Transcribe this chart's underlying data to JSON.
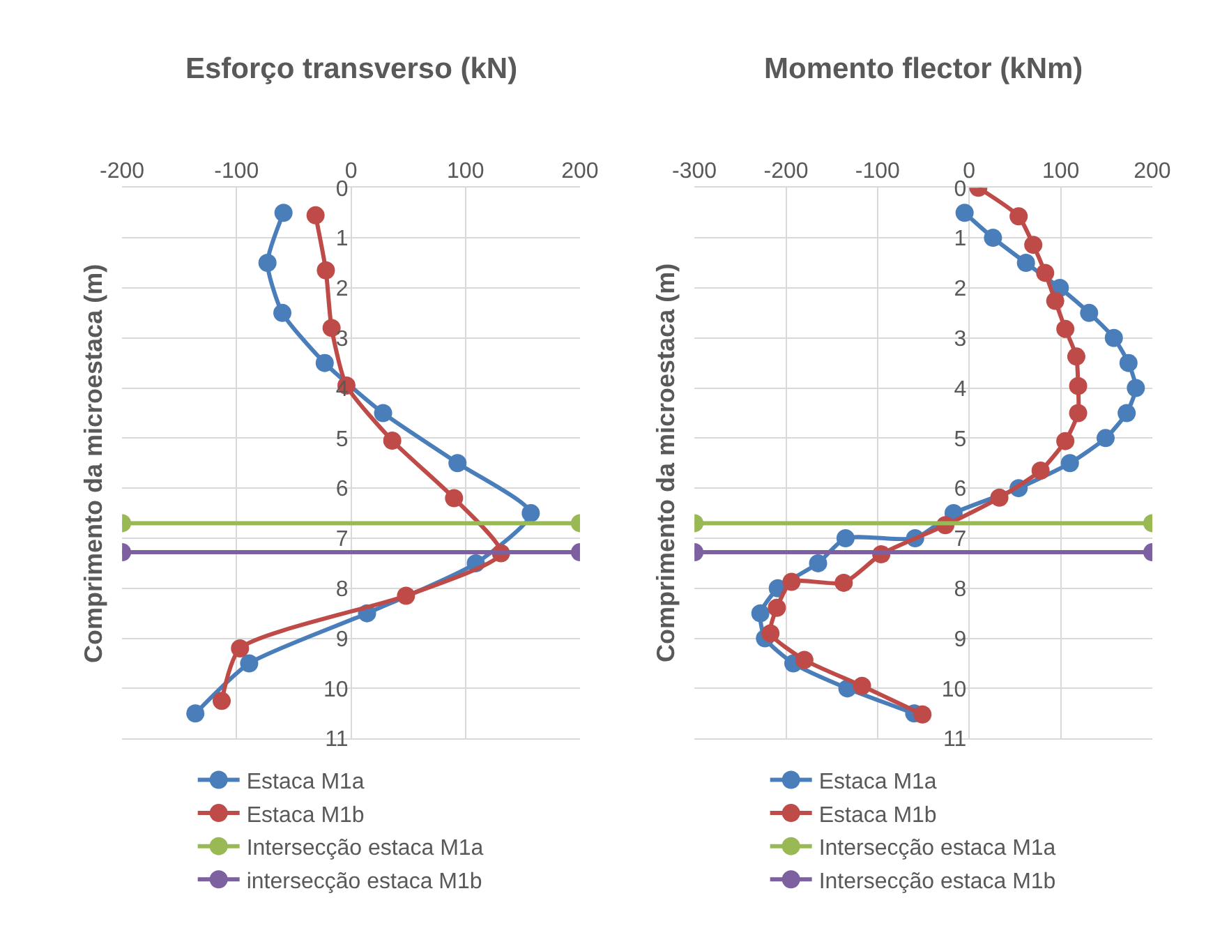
{
  "chart_data": [
    {
      "type": "line",
      "title": "Esforço transverso (kN)",
      "ylabel": "Comprimento da microestaca (m)",
      "xlim": [
        -200,
        200
      ],
      "xticks": [
        -200,
        -100,
        0,
        100,
        200
      ],
      "ylim": [
        11,
        0
      ],
      "yticks": [
        0,
        1,
        2,
        3,
        4,
        5,
        6,
        7,
        8,
        9,
        10,
        11
      ],
      "grid": true,
      "legend": "bottom",
      "marker": "circle",
      "line_style": "solid",
      "series": [
        {
          "name": "Estaca M1a",
          "color": "#4a7ebb",
          "x": [
            -59,
            -73,
            -60,
            -23,
            28,
            93,
            157,
            109,
            14,
            -89,
            -136
          ],
          "values": [
            0.5,
            1.5,
            2.5,
            3.5,
            4.5,
            5.5,
            6.5,
            7.5,
            8.5,
            9.5,
            10.5
          ]
        },
        {
          "name": "Estaca M1b",
          "color": "#be4b48",
          "x": [
            -31,
            -22,
            -17,
            -4,
            36,
            90,
            131,
            48,
            -97,
            -113
          ],
          "values": [
            0.55,
            1.65,
            2.8,
            3.95,
            5.05,
            6.2,
            7.3,
            8.15,
            9.2,
            10.25
          ]
        },
        {
          "name": "Intersecção estaca M1a",
          "color": "#98b954",
          "x": [
            -200,
            200
          ],
          "values": [
            6.7,
            6.7
          ]
        },
        {
          "name": "intersecção estaca M1b",
          "color": "#7d60a0",
          "x": [
            -200,
            200
          ],
          "values": [
            7.28,
            7.28
          ]
        }
      ]
    },
    {
      "type": "line",
      "title": "Momento flector (kNm)",
      "ylabel": "Comprimento da microestaca (m)",
      "xlim": [
        -300,
        200
      ],
      "xticks": [
        -300,
        -200,
        -100,
        0,
        100,
        200
      ],
      "ylim": [
        11,
        0
      ],
      "yticks": [
        0,
        1,
        2,
        3,
        4,
        5,
        6,
        7,
        8,
        9,
        10,
        11
      ],
      "grid": true,
      "legend": "bottom",
      "marker": "circle",
      "line_style": "solid",
      "series": [
        {
          "name": "Estaca M1a",
          "color": "#4a7ebb",
          "x": [
            -5,
            26,
            62,
            99,
            131,
            158,
            174,
            182,
            172,
            149,
            110,
            54,
            -17,
            -59,
            -135,
            -165,
            -209,
            -228,
            -223,
            -192,
            -133,
            -60
          ],
          "values": [
            0.5,
            1.0,
            1.5,
            2.0,
            2.5,
            3.0,
            3.5,
            4.0,
            4.5,
            5.0,
            5.5,
            6.0,
            6.5,
            7.0,
            7.0,
            7.5,
            8.0,
            8.5,
            9.0,
            9.5,
            10.0,
            10.5
          ]
        },
        {
          "name": "Estaca M1b",
          "color": "#be4b48",
          "x": [
            10,
            54,
            70,
            83,
            94,
            105,
            117,
            119,
            119,
            105,
            78,
            33,
            -26,
            -96,
            -137,
            -194,
            -210,
            -217,
            -180,
            -117,
            -51
          ],
          "values": [
            0.0,
            0.57,
            1.14,
            1.7,
            2.26,
            2.82,
            3.37,
            3.96,
            4.5,
            5.06,
            5.65,
            6.19,
            6.74,
            7.32,
            7.89,
            7.87,
            8.39,
            8.9,
            9.43,
            9.95,
            10.52
          ]
        },
        {
          "name": "Intersecção estaca M1a",
          "color": "#98b954",
          "x": [
            -300,
            200
          ],
          "values": [
            6.7,
            6.7
          ]
        },
        {
          "name": "Intersecção estaca M1b",
          "color": "#7d60a0",
          "x": [
            -300,
            200
          ],
          "values": [
            7.28,
            7.28
          ]
        }
      ]
    }
  ]
}
